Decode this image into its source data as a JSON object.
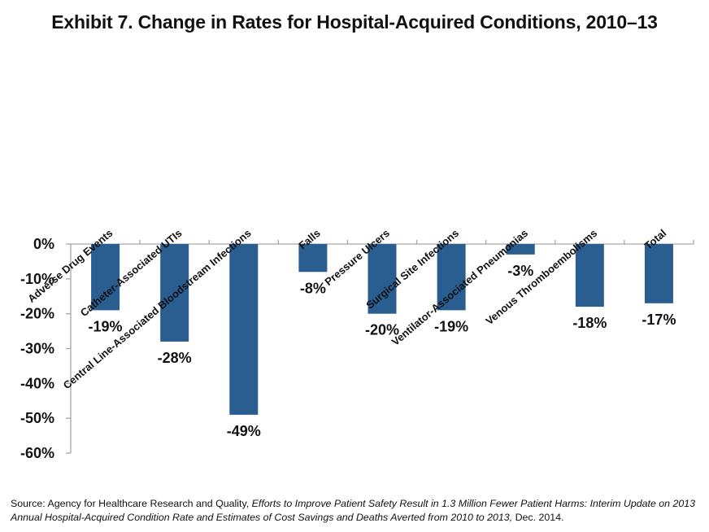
{
  "chart_data": {
    "type": "bar",
    "title": "Exhibit 7. Change in Rates for Hospital-Acquired Conditions, 2010–13",
    "categories": [
      "Adverse Drug Events",
      "Catheter-Associated UTIs",
      "Central Line-Associated Bloodstream Infections",
      "Falls",
      "Pressure Ulcers",
      "Surgical Site Infections",
      "Ventilator-Associated Pneumonias",
      "Venous Thromboembolisms",
      "Total"
    ],
    "values": [
      -19,
      -28,
      -49,
      -8,
      -20,
      -19,
      -3,
      -18,
      -17
    ],
    "data_labels": [
      "-19%",
      "-28%",
      "-49%",
      "-8%",
      "-20%",
      "-19%",
      "-3%",
      "-18%",
      "-17%"
    ],
    "yticks": [
      0,
      -10,
      -20,
      -30,
      -40,
      -50,
      -60
    ],
    "ytick_labels": [
      "0%",
      "-10%",
      "-20%",
      "-30%",
      "-40%",
      "-50%",
      "-60%"
    ],
    "ylim": [
      -60,
      0
    ],
    "xlabel": "",
    "ylabel": "",
    "bar_color": "#2a5e91",
    "axis_color": "#a6a6a6"
  },
  "source": {
    "prefix": "Source: Agency for Healthcare Research and Quality, ",
    "title": "Efforts to Improve Patient Safety Result in 1.3 Million Fewer Patient Harms: Interim Update on 2013 Annual Hospital-Acquired Condition Rate and Estimates of Cost Savings and Deaths Averted from 2010 to 2013,",
    "suffix": " Dec. 2014."
  }
}
